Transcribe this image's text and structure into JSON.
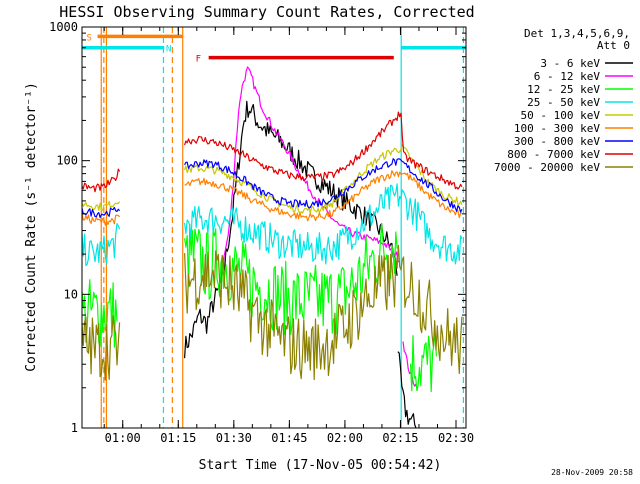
{
  "chart_data": {
    "type": "line",
    "title": "HESSI Observing Summary Count Rates, Corrected",
    "xlabel": "Start Time (17-Nov-05 00:54:42)",
    "ylabel": "Corrected Count Rate (s⁻¹ detector⁻¹)",
    "yscale": "log",
    "xlim_min": [
      -5.7,
      98
    ],
    "ylim": [
      1,
      1000
    ],
    "x_ticks": [
      "01:00",
      "01:15",
      "01:30",
      "01:45",
      "02:00",
      "02:15",
      "02:30"
    ],
    "x_tick_values_min": [
      5.3,
      20.3,
      35.3,
      50.3,
      65.3,
      80.3,
      95.3
    ],
    "y_ticks": [
      "1",
      "10",
      "100",
      "1000"
    ],
    "y_tick_values": [
      1,
      10,
      100,
      1000
    ],
    "legend_position": "top-right outside",
    "legend_header": [
      "Det 1,3,4,5,6,9,",
      "Att 0"
    ],
    "timestamp": "28-Nov-2009 20:58",
    "annotations": [
      {
        "text": "S",
        "color": "#ff8000",
        "x_min": -4.5,
        "y": 850
      },
      {
        "text": "N",
        "color": "#00e5e5",
        "x_min": 17,
        "y": 700
      },
      {
        "text": "F",
        "color": "#e00000",
        "x_min": 25,
        "y": 590
      }
    ],
    "state_bars": [
      {
        "name": "saa",
        "color": "#ff8000",
        "x_start_min": -1.5,
        "x_end_min": 21.5,
        "y": 850
      },
      {
        "name": "night",
        "color": "#00e5e5",
        "x_start_min": -5.7,
        "x_end_min": 16.5,
        "y": 700
      },
      {
        "name": "night",
        "color": "#00e5e5",
        "x_start_min": 80.5,
        "x_end_min": 98,
        "y": 700
      },
      {
        "name": "flare",
        "color": "#e00000",
        "x_start_min": 28.5,
        "x_end_min": 78.5,
        "y": 590
      }
    ],
    "vertical_markers": [
      {
        "color": "#ff8000",
        "x_min": -0.5,
        "style": "solid"
      },
      {
        "color": "#ff8000",
        "x_min": 0.2,
        "style": "dashed"
      },
      {
        "color": "#ff8000",
        "x_min": 0.9,
        "style": "solid"
      },
      {
        "color": "#ff8000",
        "x_min": 18.7,
        "style": "dashed"
      },
      {
        "color": "#ff8000",
        "x_min": 21.5,
        "style": "solid"
      },
      {
        "color": "#00e5e5",
        "x_min": 16.3,
        "style": "dashed"
      },
      {
        "color": "#00e5e5",
        "x_min": 80.5,
        "style": "solid"
      },
      {
        "color": "#00e5e5",
        "x_min": 97.3,
        "style": "dashed"
      }
    ],
    "series": [
      {
        "name": "3 - 6 keV",
        "color": "#000000",
        "noise": 0.08,
        "segments": [
          {
            "x": [
              22,
              24,
              26,
              28,
              30,
              32,
              35,
              37,
              38,
              39,
              40,
              42,
              45,
              48,
              52,
              56,
              60,
              65,
              70,
              75,
              78,
              79.5
            ],
            "y": [
              4,
              5,
              7,
              6,
              9,
              12,
              40,
              120,
              200,
              250,
              240,
              190,
              160,
              140,
              105,
              80,
              65,
              50,
              40,
              30,
              22,
              15
            ]
          },
          {
            "x": [
              79.6,
              80.2,
              80.8,
              81.5,
              82.5,
              83.5,
              84.5
            ],
            "y": [
              4,
              2.5,
              1.8,
              1.4,
              1.2,
              1.1,
              1.05
            ]
          }
        ]
      },
      {
        "name": "6 - 12 keV",
        "color": "#ff00ff",
        "noise": 0.03,
        "segments": [
          {
            "x": [
              32,
              34,
              35,
              36,
              37,
              38,
              39,
              40,
              41,
              43,
              46,
              49,
              52,
              56,
              60,
              64,
              68,
              72,
              76,
              79,
              80.2
            ],
            "y": [
              15,
              30,
              60,
              150,
              300,
              400,
              480,
              430,
              350,
              250,
              175,
              130,
              90,
              60,
              42,
              32,
              28,
              26,
              24,
              20,
              18
            ]
          },
          {
            "x": [
              81,
              82,
              83,
              84,
              85
            ],
            "y": [
              4.5,
              3.2,
              2.5,
              2.2,
              2.0
            ]
          }
        ]
      },
      {
        "name": "12 - 25 keV",
        "color": "#00ff00",
        "noise": 0.28,
        "segments": [
          {
            "x": [
              -5.7,
              1,
              4
            ],
            "y": [
              7,
              7.5,
              7
            ]
          },
          {
            "x": [
              22,
              24,
              28,
              32,
              36,
              40,
              44,
              48,
              52,
              56,
              60,
              64,
              68,
              72,
              76,
              79.5
            ],
            "y": [
              18,
              20,
              16,
              18,
              15,
              12,
              11,
              9.5,
              9,
              9,
              9,
              9.5,
              12,
              17,
              22,
              25
            ]
          },
          {
            "x": [
              83,
              87,
              90
            ],
            "y": [
              3.2,
              3.0,
              3.1
            ]
          }
        ]
      },
      {
        "name": "25 - 50 keV",
        "color": "#00e5e5",
        "noise": 0.12,
        "segments": [
          {
            "x": [
              -5.7,
              -3,
              0,
              3,
              4.5
            ],
            "y": [
              22,
              20,
              21,
              24,
              28
            ]
          },
          {
            "x": [
              22,
              25,
              28,
              32,
              36,
              40,
              44,
              48,
              52,
              56,
              60,
              64,
              68,
              72,
              76,
              80,
              84,
              88,
              92,
              97
            ],
            "y": [
              33,
              35,
              37,
              36,
              34,
              30,
              27,
              24,
              23,
              22,
              22,
              24,
              30,
              38,
              48,
              55,
              42,
              28,
              23,
              21
            ]
          }
        ]
      },
      {
        "name": "50 - 100 keV",
        "color": "#c8c800",
        "noise": 0.03,
        "segments": [
          {
            "x": [
              -5.7,
              -3,
              0,
              3,
              4.5
            ],
            "y": [
              48,
              46,
              45,
              48,
              52
            ]
          },
          {
            "x": [
              22,
              26,
              30,
              34,
              38,
              42,
              46,
              50,
              54,
              58,
              62,
              66,
              70,
              74,
              78,
              81,
              84,
              88,
              92,
              97
            ],
            "y": [
              85,
              88,
              85,
              78,
              68,
              58,
              50,
              45,
              43,
              43,
              48,
              62,
              82,
              102,
              118,
              125,
              95,
              68,
              55,
              48
            ]
          }
        ]
      },
      {
        "name": "100 - 300 keV",
        "color": "#ff8000",
        "noise": 0.03,
        "segments": [
          {
            "x": [
              -5.7,
              -3,
              0,
              3,
              4.5
            ],
            "y": [
              38,
              36,
              35,
              36,
              38
            ]
          },
          {
            "x": [
              22,
              26,
              30,
              34,
              38,
              42,
              46,
              50,
              54,
              58,
              62,
              66,
              70,
              74,
              78,
              81,
              84,
              88,
              92,
              97
            ],
            "y": [
              65,
              70,
              68,
              62,
              55,
              48,
              43,
              40,
              38,
              38,
              40,
              48,
              60,
              72,
              80,
              82,
              70,
              55,
              45,
              38
            ]
          }
        ]
      },
      {
        "name": "300 - 800 keV",
        "color": "#0000ff",
        "noise": 0.03,
        "segments": [
          {
            "x": [
              -5.7,
              -3,
              0,
              3,
              4.5
            ],
            "y": [
              42,
              41,
              40,
              42,
              45
            ]
          },
          {
            "x": [
              22,
              26,
              30,
              34,
              38,
              42,
              46,
              50,
              54,
              58,
              62,
              66,
              70,
              74,
              78,
              81,
              84,
              88,
              92,
              97
            ],
            "y": [
              90,
              96,
              95,
              85,
              72,
              60,
              52,
              48,
              47,
              48,
              52,
              62,
              75,
              88,
              98,
              96,
              80,
              65,
              52,
              42
            ]
          }
        ]
      },
      {
        "name": "800 - 7000 keV",
        "color": "#e00000",
        "noise": 0.03,
        "segments": [
          {
            "x": [
              -5.7,
              -3,
              0,
              3,
              4.5
            ],
            "y": [
              65,
              62,
              63,
              72,
              85
            ]
          },
          {
            "x": [
              22,
              26,
              30,
              34,
              38,
              42,
              46,
              50,
              54,
              58,
              62,
              66,
              70,
              74,
              78,
              80.5,
              81,
              84,
              88,
              92,
              97
            ],
            "y": [
              140,
              145,
              138,
              125,
              110,
              95,
              85,
              78,
              75,
              75,
              78,
              90,
              115,
              150,
              195,
              230,
              110,
              95,
              82,
              72,
              62
            ]
          }
        ]
      },
      {
        "name": "7000 - 20000 keV",
        "color": "#8b8000",
        "noise": 0.25,
        "segments": [
          {
            "x": [
              -5.7,
              -3,
              0,
              3,
              4.5
            ],
            "y": [
              4.5,
              4,
              4,
              4.2,
              4
            ]
          },
          {
            "x": [
              22,
              25,
              28,
              31,
              34,
              38,
              42,
              46,
              50,
              54,
              58,
              62,
              66,
              70,
              74,
              78,
              81,
              84,
              88,
              92,
              97
            ],
            "y": [
              12,
              13.5,
              15,
              14,
              12,
              9,
              6.5,
              5,
              4.2,
              4,
              4,
              4.5,
              6,
              8.5,
              11,
              13,
              13.5,
              11,
              7.5,
              5,
              4
            ]
          }
        ]
      }
    ]
  }
}
